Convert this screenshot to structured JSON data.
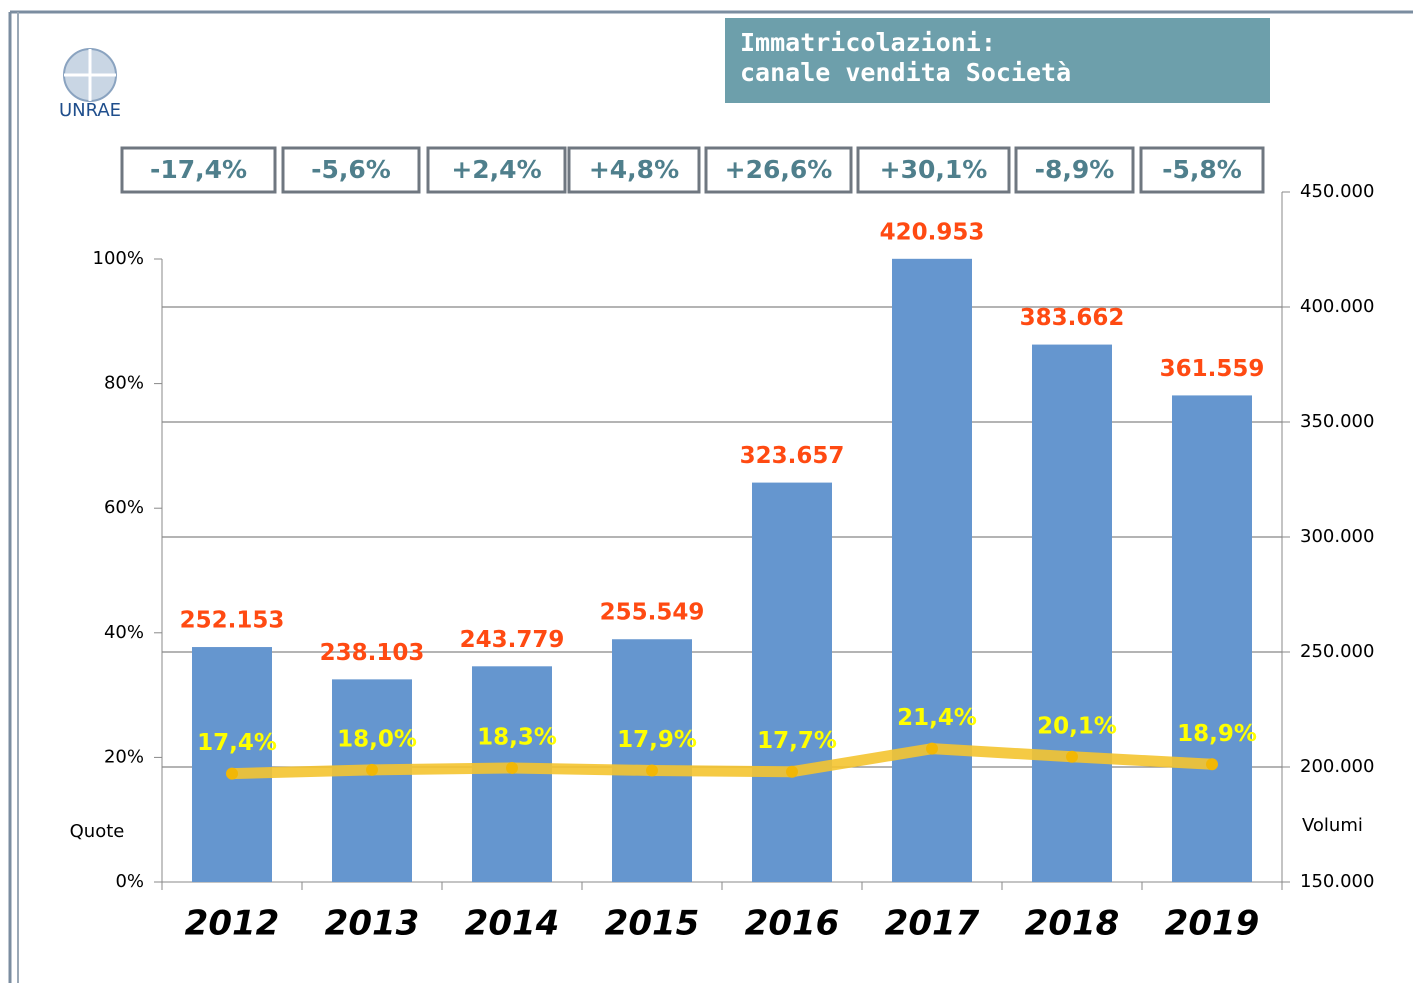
{
  "logo": "UNRAE",
  "chart_data": {
    "type": "bar",
    "title": [
      "Immatricolazioni:",
      "canale vendita Società"
    ],
    "annotations": [
      "-17,4%",
      "-5,6%",
      "+2,4%",
      "+4,8%",
      "+26,6%",
      "+30,1%",
      "-8,9%",
      "-5,8%"
    ],
    "categories": [
      "2012",
      "2013",
      "2014",
      "2015",
      "2016",
      "2017",
      "2018",
      "2019"
    ],
    "series": [
      {
        "type": "bar",
        "axis": "y2",
        "color": "#6596cf",
        "values": [
          252153,
          238103,
          243779,
          255549,
          323657,
          420953,
          383662,
          361559
        ],
        "value_labels": [
          "252.153",
          "238.103",
          "243.779",
          "255.549",
          "323.657",
          "420.953",
          "383.662",
          "361.559"
        ]
      },
      {
        "type": "line",
        "axis": "y",
        "color": "#f4c430",
        "values": [
          17.4,
          18.0,
          18.3,
          17.9,
          17.7,
          21.4,
          20.1,
          18.9
        ],
        "value_labels": [
          "17,4%",
          "18,0%",
          "18,3%",
          "17,9%",
          "17,7%",
          "21,4%",
          "20,1%",
          "18,9%"
        ]
      }
    ],
    "ylabel": "Quote",
    "y2label": "Volumi",
    "ylim": [
      0,
      100
    ],
    "yticks": [
      {
        "value": 0,
        "label": "0%"
      },
      {
        "value": 20,
        "label": "20%"
      },
      {
        "value": 40,
        "label": "40%"
      },
      {
        "value": 60,
        "label": "60%"
      },
      {
        "value": 80,
        "label": "80%"
      },
      {
        "value": 100,
        "label": "100%"
      }
    ],
    "y2lim": [
      150000,
      450000
    ],
    "y2ticks": [
      {
        "value": 150000,
        "label": "150.000"
      },
      {
        "value": 200000,
        "label": "200.000"
      },
      {
        "value": 250000,
        "label": "250.000"
      },
      {
        "value": 300000,
        "label": "300.000"
      },
      {
        "value": 350000,
        "label": "350.000"
      },
      {
        "value": 400000,
        "label": "400.000"
      },
      {
        "value": 450000,
        "label": "450.000"
      }
    ],
    "grid": true
  }
}
